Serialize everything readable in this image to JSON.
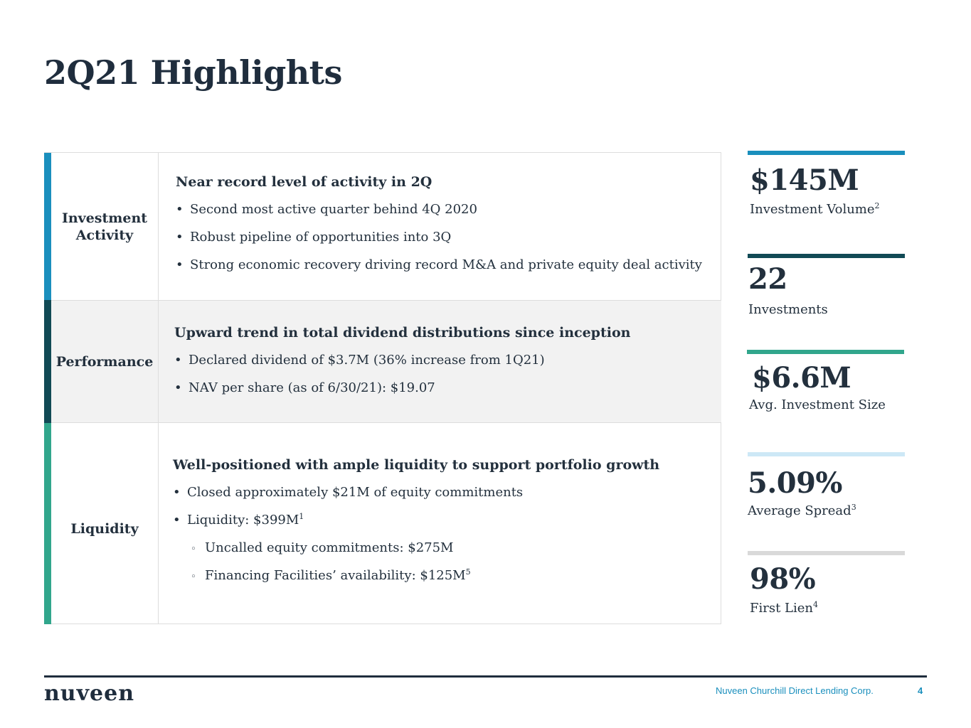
{
  "title": "2Q21 Highlights",
  "colors": {
    "investment_bar": "#1a8fbd",
    "performance_bar": "#114a55",
    "liquidity_bar": "#31a68c",
    "performance_bg": "#f2f2f2",
    "stat_bar_1": "#1a8fbd",
    "stat_bar_2": "#114a55",
    "stat_bar_3": "#31a68c",
    "stat_bar_4": "#cde8f6",
    "stat_bar_5": "#d9d9d9",
    "footer_text": "#1a8fbd"
  },
  "sections": {
    "investment": {
      "label_line1": "Investment",
      "label_line2": "Activity",
      "heading": "Near record level of activity in 2Q",
      "bullets": [
        "Second most active quarter behind 4Q 2020",
        "Robust pipeline of opportunities into 3Q",
        "Strong economic recovery driving record M&A and private equity deal activity"
      ]
    },
    "performance": {
      "label": "Performance",
      "heading": "Upward trend in total dividend distributions since inception",
      "bullets": [
        "Declared dividend of $3.7M (36% increase from 1Q21)",
        "NAV per share (as of 6/30/21): $19.07"
      ]
    },
    "liquidity": {
      "label": "Liquidity",
      "heading": "Well-positioned with ample liquidity to support portfolio growth",
      "bullet1": "Closed approximately $21M of equity commitments",
      "bullet2": "Liquidity: $399M",
      "bullet2_sup": "1",
      "sub_bullet1": "Uncalled equity commitments: $275M",
      "sub_bullet2": "Financing Facilities’ availability: $125M",
      "sub_bullet2_sup": "5"
    }
  },
  "stats": [
    {
      "value": "$145M",
      "caption": "Investment Volume",
      "sup": "2"
    },
    {
      "value": "22",
      "caption": "Investments",
      "sup": ""
    },
    {
      "value": "$6.6M",
      "caption": "Avg. Investment Size",
      "sup": ""
    },
    {
      "value": "5.09%",
      "caption": "Average Spread",
      "sup": "3"
    },
    {
      "value": "98%",
      "caption": "First Lien",
      "sup": "4"
    }
  ],
  "footer": {
    "logo": "nuveen",
    "company": "Nuveen Churchill Direct Lending Corp.",
    "page_number": "4"
  }
}
